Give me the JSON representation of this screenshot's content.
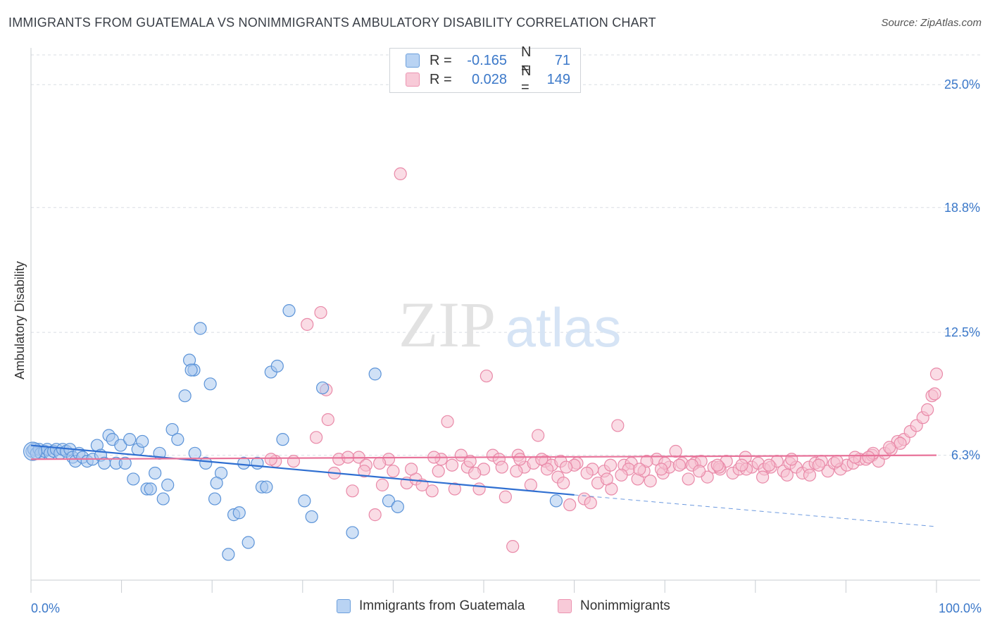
{
  "title": "IMMIGRANTS FROM GUATEMALA VS NONIMMIGRANTS AMBULATORY DISABILITY CORRELATION CHART",
  "source": "Source: ZipAtlas.com",
  "watermark": {
    "zip": "ZIP",
    "atlas": "atlas"
  },
  "legend": {
    "series1": {
      "r_label": "R =",
      "r_value": "-0.165",
      "n_label": "N =",
      "n_value": "71"
    },
    "series2": {
      "r_label": "R =",
      "r_value": "0.028",
      "n_label": "N =",
      "n_value": "149"
    }
  },
  "bottom_legend": {
    "series1": "Immigrants from Guatemala",
    "series2": "Nonimmigrants"
  },
  "colors": {
    "blue_fill": "#a9c8ef",
    "blue_stroke": "#5b93d8",
    "blue_line": "#2f6fd1",
    "pink_fill": "#f6bfd0",
    "pink_stroke": "#e989a8",
    "pink_line": "#e8739a",
    "tick_label": "#3b78c9",
    "grid": "#d9dde3"
  },
  "chart_data": {
    "type": "scatter",
    "title": "IMMIGRANTS FROM GUATEMALA VS NONIMMIGRANTS AMBULATORY DISABILITY CORRELATION CHART",
    "xlabel": "",
    "ylabel": "Ambulatory Disability",
    "xlim": [
      0,
      100
    ],
    "ylim": [
      0,
      26.5
    ],
    "x_tick_labels": [
      "0.0%",
      "100.0%"
    ],
    "y_ticks": [
      6.3,
      12.5,
      18.8,
      25.0
    ],
    "y_tick_labels": [
      "6.3%",
      "12.5%",
      "18.8%",
      "25.0%"
    ],
    "grid": true,
    "legend_position": "top-center",
    "series": [
      {
        "name": "Immigrants from Guatemala",
        "color": "#a9c8ef",
        "trend": {
          "x": [
            0,
            60
          ],
          "y": [
            6.8,
            4.3
          ],
          "dashed_to": [
            100,
            2.7
          ]
        },
        "points": [
          [
            0.1,
            6.5
          ],
          [
            0.3,
            6.6
          ],
          [
            0.6,
            6.4
          ],
          [
            0.9,
            6.6
          ],
          [
            1.1,
            6.4
          ],
          [
            1.5,
            6.5
          ],
          [
            1.8,
            6.6
          ],
          [
            2.1,
            6.4
          ],
          [
            2.5,
            6.5
          ],
          [
            2.8,
            6.6
          ],
          [
            3.2,
            6.4
          ],
          [
            3.5,
            6.6
          ],
          [
            3.9,
            6.5
          ],
          [
            4.3,
            6.6
          ],
          [
            4.6,
            6.2
          ],
          [
            4.9,
            6.0
          ],
          [
            5.3,
            6.4
          ],
          [
            5.7,
            6.2
          ],
          [
            6.2,
            6.0
          ],
          [
            6.8,
            6.1
          ],
          [
            7.3,
            6.8
          ],
          [
            7.7,
            6.3
          ],
          [
            8.1,
            5.9
          ],
          [
            8.6,
            7.3
          ],
          [
            9.0,
            7.1
          ],
          [
            9.4,
            5.9
          ],
          [
            9.9,
            6.8
          ],
          [
            10.4,
            5.9
          ],
          [
            10.9,
            7.1
          ],
          [
            11.3,
            5.1
          ],
          [
            11.8,
            6.6
          ],
          [
            12.3,
            7.0
          ],
          [
            12.8,
            4.6
          ],
          [
            13.2,
            4.6
          ],
          [
            13.7,
            5.4
          ],
          [
            14.2,
            6.4
          ],
          [
            14.6,
            4.1
          ],
          [
            15.1,
            4.8
          ],
          [
            15.6,
            7.6
          ],
          [
            16.2,
            7.1
          ],
          [
            17.0,
            9.3
          ],
          [
            17.5,
            11.1
          ],
          [
            18.1,
            6.4
          ],
          [
            18.7,
            12.7
          ],
          [
            19.3,
            5.9
          ],
          [
            19.8,
            9.9
          ],
          [
            20.3,
            4.1
          ],
          [
            21.0,
            5.4
          ],
          [
            22.4,
            3.3
          ],
          [
            23.0,
            3.4
          ],
          [
            20.5,
            4.9
          ],
          [
            18.0,
            10.6
          ],
          [
            17.7,
            10.6
          ],
          [
            21.8,
            1.3
          ],
          [
            23.5,
            5.9
          ],
          [
            24.0,
            1.9
          ],
          [
            25.0,
            5.9
          ],
          [
            25.5,
            4.7
          ],
          [
            26.0,
            4.7
          ],
          [
            26.5,
            10.5
          ],
          [
            27.2,
            10.8
          ],
          [
            27.8,
            7.1
          ],
          [
            28.5,
            13.6
          ],
          [
            30.2,
            4.0
          ],
          [
            31.0,
            3.2
          ],
          [
            32.2,
            9.7
          ],
          [
            35.5,
            2.4
          ],
          [
            38.0,
            10.4
          ],
          [
            39.5,
            4.0
          ],
          [
            40.5,
            3.7
          ],
          [
            58.0,
            4.0
          ]
        ]
      },
      {
        "name": "Nonimmigrants",
        "color": "#f6bfd0",
        "trend": {
          "x": [
            0,
            100
          ],
          "y": [
            6.1,
            6.3
          ]
        },
        "points": [
          [
            30.5,
            12.9
          ],
          [
            32.0,
            13.5
          ],
          [
            32.6,
            9.6
          ],
          [
            32.8,
            8.1
          ],
          [
            34.0,
            6.1
          ],
          [
            35.5,
            4.5
          ],
          [
            36.2,
            6.2
          ],
          [
            37.0,
            5.8
          ],
          [
            38.0,
            3.3
          ],
          [
            38.8,
            4.8
          ],
          [
            39.5,
            6.1
          ],
          [
            40.8,
            20.5
          ],
          [
            41.5,
            4.9
          ],
          [
            42.5,
            5.1
          ],
          [
            43.2,
            4.8
          ],
          [
            44.3,
            4.5
          ],
          [
            45.3,
            6.1
          ],
          [
            46.0,
            8.0
          ],
          [
            46.8,
            4.6
          ],
          [
            47.5,
            6.3
          ],
          [
            48.2,
            5.7
          ],
          [
            49.5,
            4.6
          ],
          [
            50.3,
            10.3
          ],
          [
            51.0,
            6.3
          ],
          [
            51.7,
            6.1
          ],
          [
            52.4,
            4.2
          ],
          [
            53.2,
            1.7
          ],
          [
            53.8,
            6.3
          ],
          [
            54.5,
            5.7
          ],
          [
            55.2,
            4.8
          ],
          [
            56.0,
            7.3
          ],
          [
            56.8,
            6.0
          ],
          [
            57.5,
            5.8
          ],
          [
            58.2,
            5.2
          ],
          [
            58.8,
            4.9
          ],
          [
            59.5,
            3.8
          ],
          [
            60.3,
            5.9
          ],
          [
            61.1,
            4.1
          ],
          [
            61.8,
            3.9
          ],
          [
            62.6,
            4.9
          ],
          [
            63.3,
            5.5
          ],
          [
            64.1,
            4.6
          ],
          [
            64.8,
            7.8
          ],
          [
            65.5,
            5.8
          ],
          [
            66.3,
            5.9
          ],
          [
            67.0,
            5.1
          ],
          [
            67.7,
            5.5
          ],
          [
            68.4,
            5.0
          ],
          [
            69.1,
            6.1
          ],
          [
            69.8,
            5.4
          ],
          [
            70.5,
            5.7
          ],
          [
            71.2,
            6.5
          ],
          [
            71.9,
            5.9
          ],
          [
            72.6,
            5.1
          ],
          [
            73.3,
            5.9
          ],
          [
            74.0,
            6.0
          ],
          [
            74.7,
            5.2
          ],
          [
            75.4,
            5.7
          ],
          [
            76.1,
            5.6
          ],
          [
            76.8,
            6.0
          ],
          [
            77.5,
            5.4
          ],
          [
            78.2,
            5.6
          ],
          [
            78.9,
            6.2
          ],
          [
            79.6,
            5.7
          ],
          [
            80.3,
            5.9
          ],
          [
            81.0,
            5.6
          ],
          [
            81.7,
            5.7
          ],
          [
            82.4,
            6.0
          ],
          [
            83.1,
            5.5
          ],
          [
            83.8,
            5.9
          ],
          [
            84.5,
            5.7
          ],
          [
            85.2,
            5.4
          ],
          [
            85.9,
            5.7
          ],
          [
            86.6,
            5.9
          ],
          [
            87.3,
            6.0
          ],
          [
            88.0,
            5.5
          ],
          [
            88.7,
            5.9
          ],
          [
            89.4,
            5.6
          ],
          [
            90.1,
            5.8
          ],
          [
            90.8,
            5.9
          ],
          [
            91.5,
            6.1
          ],
          [
            92.2,
            6.1
          ],
          [
            92.9,
            6.3
          ],
          [
            93.6,
            6.0
          ],
          [
            94.3,
            6.4
          ],
          [
            95.0,
            6.6
          ],
          [
            95.7,
            7.0
          ],
          [
            96.4,
            7.1
          ],
          [
            97.1,
            7.5
          ],
          [
            97.8,
            7.8
          ],
          [
            98.5,
            8.2
          ],
          [
            99.0,
            8.6
          ],
          [
            99.5,
            9.3
          ],
          [
            100.0,
            10.4
          ],
          [
            99.8,
            9.4
          ],
          [
            96.0,
            6.9
          ],
          [
            94.8,
            6.7
          ],
          [
            93.0,
            6.4
          ],
          [
            89.0,
            6.0
          ],
          [
            87.0,
            5.8
          ],
          [
            84.0,
            6.1
          ],
          [
            81.5,
            5.8
          ],
          [
            79.0,
            5.6
          ],
          [
            76.0,
            5.7
          ],
          [
            73.0,
            5.8
          ],
          [
            70.0,
            5.9
          ],
          [
            68.0,
            6.0
          ],
          [
            66.0,
            5.6
          ],
          [
            64.0,
            5.8
          ],
          [
            62.0,
            5.6
          ],
          [
            60.0,
            5.8
          ],
          [
            58.5,
            6.0
          ],
          [
            57.0,
            5.6
          ],
          [
            55.5,
            5.9
          ],
          [
            54.0,
            6.1
          ],
          [
            52.0,
            5.7
          ],
          [
            50.0,
            5.6
          ],
          [
            48.5,
            6.0
          ],
          [
            46.5,
            5.8
          ],
          [
            44.5,
            6.2
          ],
          [
            42.0,
            5.6
          ],
          [
            40.0,
            5.5
          ],
          [
            38.5,
            5.9
          ],
          [
            36.8,
            5.5
          ],
          [
            35.0,
            6.2
          ],
          [
            33.5,
            5.4
          ],
          [
            31.5,
            7.2
          ],
          [
            29.0,
            6.0
          ],
          [
            27.0,
            6.0
          ],
          [
            26.5,
            6.1
          ],
          [
            91.0,
            6.2
          ],
          [
            92.5,
            6.2
          ],
          [
            86.0,
            5.3
          ],
          [
            83.5,
            5.3
          ],
          [
            80.8,
            5.2
          ],
          [
            78.5,
            5.8
          ],
          [
            75.8,
            5.8
          ],
          [
            73.8,
            5.5
          ],
          [
            71.6,
            5.8
          ],
          [
            69.6,
            5.6
          ],
          [
            67.2,
            5.6
          ],
          [
            65.2,
            5.3
          ],
          [
            63.6,
            5.1
          ],
          [
            61.4,
            5.4
          ],
          [
            59.1,
            5.7
          ],
          [
            56.4,
            6.1
          ],
          [
            53.6,
            5.5
          ],
          [
            49.0,
            5.4
          ],
          [
            45.0,
            5.5
          ]
        ]
      }
    ]
  }
}
